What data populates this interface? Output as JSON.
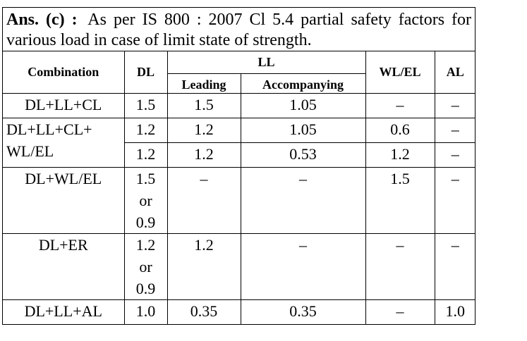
{
  "answer": {
    "label": "Ans. (c) :",
    "text": "As per IS 800 : 2007 Cl 5.4 partial safety factors for various load in case of limit state of strength."
  },
  "table": {
    "header": {
      "combination": "Combination",
      "dl": "DL",
      "ll": "LL",
      "leading": "Leading",
      "accompanying": "Accompanying",
      "wl_el": "WL/EL",
      "al": "AL"
    },
    "groups": [
      {
        "combination": [
          "DL+LL+CL"
        ],
        "rows": [
          [
            "1.5",
            "1.5",
            "1.05",
            "–",
            "–"
          ]
        ]
      },
      {
        "combination": [
          "DL+LL+CL+",
          "WL/EL"
        ],
        "rows": [
          [
            "1.2",
            "1.2",
            "1.05",
            "0.6",
            "–"
          ],
          [
            "1.2",
            "1.2",
            "0.53",
            "1.2",
            "–"
          ]
        ]
      },
      {
        "combination": [
          "DL+WL/EL"
        ],
        "rows": [
          [
            "1.5 or 0.9",
            "–",
            "–",
            "1.5",
            "–"
          ]
        ]
      },
      {
        "combination": [
          "DL+ER"
        ],
        "rows": [
          [
            "1.2 or 0.9",
            "1.2",
            "–",
            "–",
            "–"
          ]
        ]
      },
      {
        "combination": [
          "DL+LL+AL"
        ],
        "rows": [
          [
            "1.0",
            "0.35",
            "0.35",
            "–",
            "1.0"
          ]
        ]
      }
    ]
  }
}
